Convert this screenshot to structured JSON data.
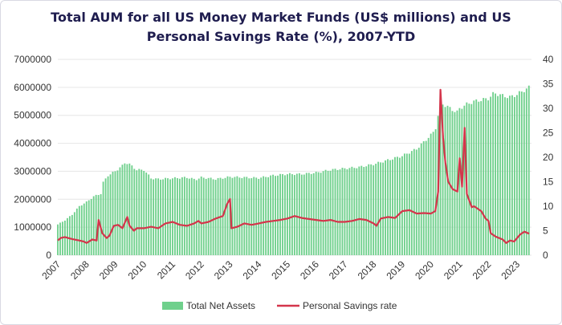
{
  "chart_data": {
    "type": "bar+line",
    "title_lines": [
      "Total AUM for all US Money Market Funds (US$ millions) and US",
      "Personal Savings Rate (%), 2007-YTD"
    ],
    "x_tick_labels": [
      "2007",
      "2008",
      "2009",
      "2010",
      "2011",
      "2012",
      "2013",
      "2014",
      "2015",
      "2016",
      "2017",
      "2018",
      "2019",
      "2020",
      "2021",
      "2022",
      "2023"
    ],
    "y_left_ticks": [
      "0",
      "1000000",
      "2000000",
      "3000000",
      "4000000",
      "5000000",
      "6000000",
      "7000000"
    ],
    "y_right_ticks": [
      "0",
      "5",
      "10",
      "15",
      "20",
      "25",
      "30",
      "35",
      "40"
    ],
    "ylim_left": [
      0,
      7000000
    ],
    "ylim_right": [
      0,
      40
    ],
    "xlim": [
      2007.0,
      2023.5
    ],
    "grid": "horizontal",
    "legend_position": "bottom-center",
    "colors": {
      "bars": "#6fd08c",
      "line": "#d4354b",
      "grid": "#e6e6e6",
      "title": "#1f1d4f"
    },
    "series": [
      {
        "name": "Total Net Assets",
        "kind": "bar",
        "axis": "left",
        "x_start": 2007.0,
        "x_step": 0.0833,
        "anchors": [
          [
            2007.0,
            1100000
          ],
          [
            2007.25,
            1250000
          ],
          [
            2007.5,
            1450000
          ],
          [
            2007.75,
            1750000
          ],
          [
            2008.0,
            1900000
          ],
          [
            2008.25,
            2100000
          ],
          [
            2008.5,
            2200000
          ],
          [
            2008.58,
            2600000
          ],
          [
            2008.75,
            2850000
          ],
          [
            2009.0,
            3000000
          ],
          [
            2009.25,
            3200000
          ],
          [
            2009.35,
            3320000
          ],
          [
            2009.5,
            3250000
          ],
          [
            2009.75,
            3050000
          ],
          [
            2010.0,
            3050000
          ],
          [
            2010.25,
            2750000
          ],
          [
            2010.5,
            2720000
          ],
          [
            2011.0,
            2750000
          ],
          [
            2011.5,
            2780000
          ],
          [
            2011.8,
            2700000
          ],
          [
            2012.0,
            2780000
          ],
          [
            2012.5,
            2720000
          ],
          [
            2013.0,
            2800000
          ],
          [
            2013.5,
            2780000
          ],
          [
            2014.0,
            2760000
          ],
          [
            2014.5,
            2850000
          ],
          [
            2015.0,
            2900000
          ],
          [
            2015.5,
            2900000
          ],
          [
            2016.0,
            2950000
          ],
          [
            2016.5,
            3050000
          ],
          [
            2017.0,
            3100000
          ],
          [
            2017.5,
            3150000
          ],
          [
            2018.0,
            3250000
          ],
          [
            2018.5,
            3400000
          ],
          [
            2019.0,
            3550000
          ],
          [
            2019.5,
            3800000
          ],
          [
            2020.0,
            4300000
          ],
          [
            2020.15,
            4500000
          ],
          [
            2020.25,
            5000000
          ],
          [
            2020.35,
            5450000
          ],
          [
            2020.5,
            5350000
          ],
          [
            2020.75,
            5200000
          ],
          [
            2020.9,
            5100000
          ],
          [
            2021.0,
            5250000
          ],
          [
            2021.25,
            5400000
          ],
          [
            2021.5,
            5500000
          ],
          [
            2021.75,
            5550000
          ],
          [
            2022.0,
            5600000
          ],
          [
            2022.2,
            5800000
          ],
          [
            2022.5,
            5700000
          ],
          [
            2022.75,
            5650000
          ],
          [
            2023.0,
            5750000
          ],
          [
            2023.25,
            5900000
          ],
          [
            2023.42,
            6000000
          ]
        ]
      },
      {
        "name": "Personal Savings rate",
        "kind": "line",
        "axis": "right",
        "points": [
          [
            2007.0,
            3.0
          ],
          [
            2007.1,
            3.5
          ],
          [
            2007.25,
            3.7
          ],
          [
            2007.5,
            3.3
          ],
          [
            2007.75,
            3.0
          ],
          [
            2007.9,
            2.8
          ],
          [
            2008.0,
            2.5
          ],
          [
            2008.2,
            3.2
          ],
          [
            2008.35,
            3.0
          ],
          [
            2008.42,
            7.2
          ],
          [
            2008.55,
            4.5
          ],
          [
            2008.7,
            3.5
          ],
          [
            2008.8,
            4.0
          ],
          [
            2008.95,
            6.0
          ],
          [
            2009.1,
            6.2
          ],
          [
            2009.25,
            5.5
          ],
          [
            2009.42,
            7.8
          ],
          [
            2009.5,
            6.0
          ],
          [
            2009.65,
            5.0
          ],
          [
            2009.75,
            5.5
          ],
          [
            2010.0,
            5.5
          ],
          [
            2010.25,
            5.8
          ],
          [
            2010.5,
            5.5
          ],
          [
            2010.75,
            6.5
          ],
          [
            2011.0,
            6.8
          ],
          [
            2011.25,
            6.2
          ],
          [
            2011.5,
            6.0
          ],
          [
            2011.75,
            6.5
          ],
          [
            2011.9,
            7.0
          ],
          [
            2012.0,
            6.5
          ],
          [
            2012.25,
            6.8
          ],
          [
            2012.5,
            7.5
          ],
          [
            2012.75,
            8.0
          ],
          [
            2012.9,
            10.5
          ],
          [
            2013.0,
            11.5
          ],
          [
            2013.05,
            5.5
          ],
          [
            2013.25,
            5.8
          ],
          [
            2013.5,
            6.5
          ],
          [
            2013.75,
            6.2
          ],
          [
            2014.0,
            6.5
          ],
          [
            2014.25,
            6.8
          ],
          [
            2014.5,
            7.0
          ],
          [
            2014.75,
            7.2
          ],
          [
            2015.0,
            7.5
          ],
          [
            2015.25,
            8.0
          ],
          [
            2015.5,
            7.6
          ],
          [
            2015.75,
            7.4
          ],
          [
            2016.0,
            7.2
          ],
          [
            2016.25,
            7.0
          ],
          [
            2016.5,
            7.2
          ],
          [
            2016.75,
            6.8
          ],
          [
            2017.0,
            6.8
          ],
          [
            2017.25,
            7.0
          ],
          [
            2017.5,
            7.4
          ],
          [
            2017.75,
            7.2
          ],
          [
            2018.0,
            6.5
          ],
          [
            2018.1,
            6.0
          ],
          [
            2018.25,
            7.5
          ],
          [
            2018.5,
            7.8
          ],
          [
            2018.75,
            7.6
          ],
          [
            2019.0,
            9.0
          ],
          [
            2019.25,
            9.2
          ],
          [
            2019.5,
            8.5
          ],
          [
            2019.75,
            8.6
          ],
          [
            2020.0,
            8.5
          ],
          [
            2020.15,
            9.0
          ],
          [
            2020.25,
            13.0
          ],
          [
            2020.33,
            33.8
          ],
          [
            2020.42,
            24.0
          ],
          [
            2020.5,
            19.0
          ],
          [
            2020.6,
            15.0
          ],
          [
            2020.75,
            13.5
          ],
          [
            2020.92,
            13.0
          ],
          [
            2021.0,
            19.8
          ],
          [
            2021.08,
            14.0
          ],
          [
            2021.17,
            26.0
          ],
          [
            2021.25,
            12.5
          ],
          [
            2021.42,
            9.8
          ],
          [
            2021.5,
            10.0
          ],
          [
            2021.75,
            9.0
          ],
          [
            2021.9,
            7.5
          ],
          [
            2022.0,
            7.0
          ],
          [
            2022.08,
            4.5
          ],
          [
            2022.25,
            3.8
          ],
          [
            2022.5,
            3.2
          ],
          [
            2022.62,
            2.5
          ],
          [
            2022.75,
            3.0
          ],
          [
            2022.9,
            2.8
          ],
          [
            2023.0,
            3.5
          ],
          [
            2023.1,
            4.2
          ],
          [
            2023.25,
            4.8
          ],
          [
            2023.42,
            4.4
          ]
        ]
      }
    ]
  }
}
